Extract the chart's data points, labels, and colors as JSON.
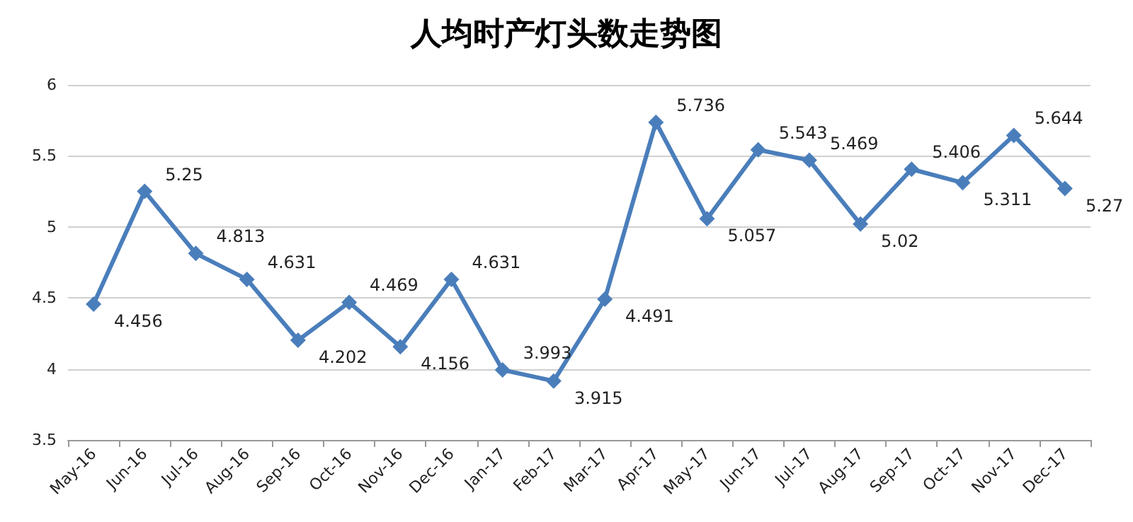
{
  "chart_data": {
    "type": "line",
    "title": "人均时产灯头数走势图",
    "categories": [
      "May-16",
      "Jun-16",
      "Jul-16",
      "Aug-16",
      "Sep-16",
      "Oct-16",
      "Nov-16",
      "Dec-16",
      "Jan-17",
      "Feb-17",
      "Mar-17",
      "Apr-17",
      "May-17",
      "Jun-17",
      "Jul-17",
      "Aug-17",
      "Sep-17",
      "Oct-17",
      "Nov-17",
      "Dec-17"
    ],
    "series": [
      {
        "color": "#4a7ebb",
        "values": [
          4.456,
          5.25,
          4.813,
          4.631,
          4.202,
          4.469,
          4.156,
          4.631,
          3.993,
          3.915,
          4.491,
          5.736,
          5.057,
          5.543,
          5.469,
          5.02,
          5.406,
          5.311,
          5.644,
          5.27
        ]
      }
    ],
    "ylim": [
      3.5,
      6
    ],
    "yticks": [
      3.5,
      4,
      4.5,
      5,
      5.5,
      6
    ],
    "grid": "y",
    "marker": "diamond",
    "line_style": "solid",
    "data_labels": true
  }
}
